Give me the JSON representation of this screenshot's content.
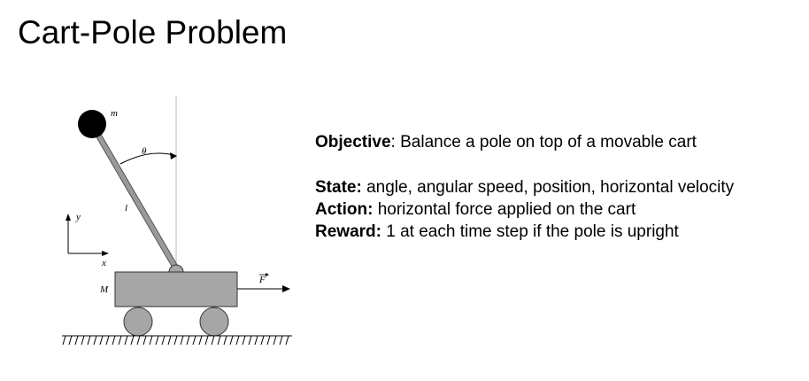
{
  "title": "Cart-Pole Problem",
  "diagram": {
    "mass_label": "m",
    "angle_label": "θ",
    "length_label": "l",
    "cart_mass_label": "M",
    "force_label": "F",
    "x_axis_label": "x",
    "y_axis_label": "y",
    "colors": {
      "cart": "#a6a6a6",
      "wheels": "#a6a6a6",
      "pole": "#9a9a9a",
      "bob": "#000000"
    }
  },
  "text": {
    "objective": {
      "label": "Objective",
      "sep": ": ",
      "value": "Balance a pole on top of a movable cart"
    },
    "state": {
      "label": "State:",
      "value": " angle, angular speed, position, horizontal velocity"
    },
    "action": {
      "label": "Action:",
      "value": " horizontal force applied on the cart"
    },
    "reward": {
      "label": "Reward:",
      "value": " 1 at each time step if the pole is upright"
    }
  }
}
